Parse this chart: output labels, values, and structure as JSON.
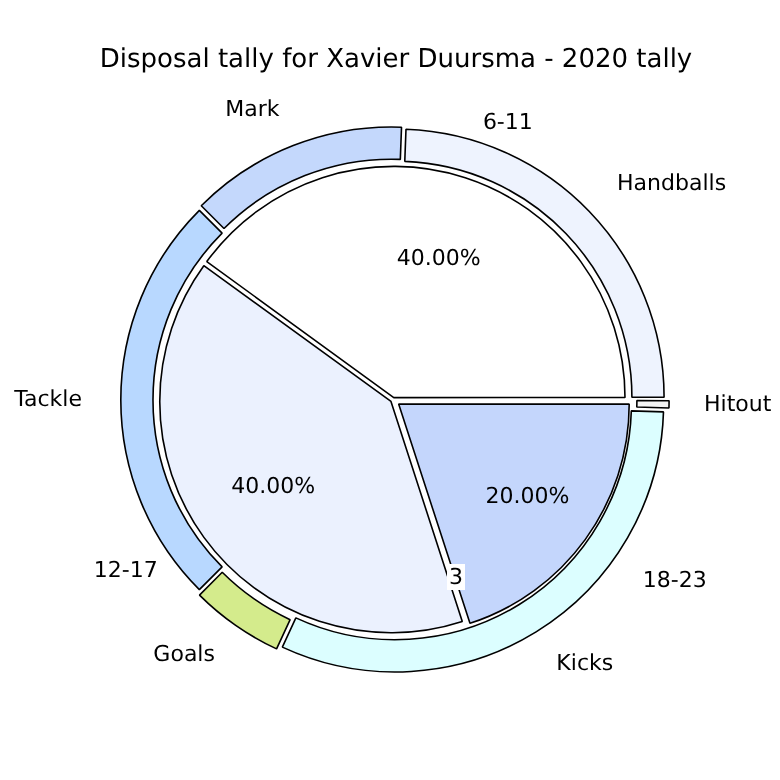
{
  "chart_data": [
    {
      "type": "donut",
      "title": "Disposal tally for Xavier Duursma - 2020 tally",
      "categories": [
        "Handballs",
        "Mark",
        "Tackle",
        "Goals",
        "Kicks",
        "Hitout"
      ],
      "values": [
        24.4,
        13.1,
        25,
        5.6,
        31.4,
        0.5
      ],
      "colors": [
        "#eef3fe",
        "#c4d8fc",
        "#b8d8ff",
        "#d4eb8c",
        "#dcfeff",
        "#f4f4f4"
      ],
      "annotations": [
        "3"
      ]
    },
    {
      "type": "pie",
      "categories": [
        "6-11",
        "12-17",
        "18-23"
      ],
      "values": [
        40,
        40,
        20
      ],
      "colors": [
        "#ffffff",
        "#ebf1fe",
        "#c4d6fc"
      ],
      "value_labels": [
        "40.00%",
        "40.00%",
        "20.00%"
      ]
    }
  ]
}
